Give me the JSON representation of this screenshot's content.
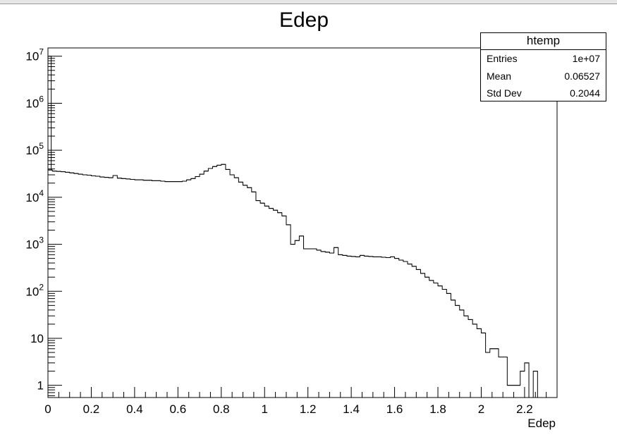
{
  "chart_data": {
    "type": "histogram",
    "title": "Edep",
    "xlabel": "Edep",
    "ylabel": "",
    "xlim": [
      0,
      2.35
    ],
    "ylim": [
      0.55,
      15000000
    ],
    "yscale": "log",
    "grid": false,
    "legend": "none",
    "line_color": "#000000",
    "bin_width": 0.02,
    "bins": [
      {
        "x0": 0.0,
        "y": 38000
      },
      {
        "x0": 0.02,
        "y": 36000
      },
      {
        "x0": 0.04,
        "y": 35500
      },
      {
        "x0": 0.06,
        "y": 35000
      },
      {
        "x0": 0.08,
        "y": 34000
      },
      {
        "x0": 0.1,
        "y": 33000
      },
      {
        "x0": 0.12,
        "y": 32000
      },
      {
        "x0": 0.14,
        "y": 31000
      },
      {
        "x0": 0.16,
        "y": 30000
      },
      {
        "x0": 0.18,
        "y": 29500
      },
      {
        "x0": 0.2,
        "y": 28500
      },
      {
        "x0": 0.22,
        "y": 28000
      },
      {
        "x0": 0.24,
        "y": 27000
      },
      {
        "x0": 0.26,
        "y": 26500
      },
      {
        "x0": 0.28,
        "y": 26000
      },
      {
        "x0": 0.3,
        "y": 29000
      },
      {
        "x0": 0.32,
        "y": 25500
      },
      {
        "x0": 0.34,
        "y": 25000
      },
      {
        "x0": 0.36,
        "y": 24500
      },
      {
        "x0": 0.38,
        "y": 24000
      },
      {
        "x0": 0.4,
        "y": 23500
      },
      {
        "x0": 0.42,
        "y": 23500
      },
      {
        "x0": 0.44,
        "y": 23000
      },
      {
        "x0": 0.46,
        "y": 23000
      },
      {
        "x0": 0.48,
        "y": 22500
      },
      {
        "x0": 0.5,
        "y": 22500
      },
      {
        "x0": 0.52,
        "y": 22000
      },
      {
        "x0": 0.54,
        "y": 21500
      },
      {
        "x0": 0.56,
        "y": 21500
      },
      {
        "x0": 0.58,
        "y": 21500
      },
      {
        "x0": 0.6,
        "y": 21500
      },
      {
        "x0": 0.62,
        "y": 22000
      },
      {
        "x0": 0.64,
        "y": 23500
      },
      {
        "x0": 0.66,
        "y": 25000
      },
      {
        "x0": 0.68,
        "y": 27500
      },
      {
        "x0": 0.7,
        "y": 31000
      },
      {
        "x0": 0.72,
        "y": 36000
      },
      {
        "x0": 0.74,
        "y": 41000
      },
      {
        "x0": 0.76,
        "y": 45000
      },
      {
        "x0": 0.78,
        "y": 48000
      },
      {
        "x0": 0.8,
        "y": 50000
      },
      {
        "x0": 0.82,
        "y": 39000
      },
      {
        "x0": 0.84,
        "y": 30000
      },
      {
        "x0": 0.86,
        "y": 26000
      },
      {
        "x0": 0.88,
        "y": 21000
      },
      {
        "x0": 0.9,
        "y": 18000
      },
      {
        "x0": 0.92,
        "y": 16000
      },
      {
        "x0": 0.94,
        "y": 13000
      },
      {
        "x0": 0.96,
        "y": 8500
      },
      {
        "x0": 0.98,
        "y": 7500
      },
      {
        "x0": 1.0,
        "y": 6500
      },
      {
        "x0": 1.02,
        "y": 5800
      },
      {
        "x0": 1.04,
        "y": 5300
      },
      {
        "x0": 1.06,
        "y": 4700
      },
      {
        "x0": 1.08,
        "y": 4000
      },
      {
        "x0": 1.1,
        "y": 2600
      },
      {
        "x0": 1.12,
        "y": 1000
      },
      {
        "x0": 1.14,
        "y": 1200
      },
      {
        "x0": 1.16,
        "y": 1500
      },
      {
        "x0": 1.18,
        "y": 800
      },
      {
        "x0": 1.2,
        "y": 800
      },
      {
        "x0": 1.22,
        "y": 800
      },
      {
        "x0": 1.24,
        "y": 750
      },
      {
        "x0": 1.26,
        "y": 700
      },
      {
        "x0": 1.28,
        "y": 680
      },
      {
        "x0": 1.3,
        "y": 650
      },
      {
        "x0": 1.32,
        "y": 850
      },
      {
        "x0": 1.34,
        "y": 600
      },
      {
        "x0": 1.36,
        "y": 580
      },
      {
        "x0": 1.38,
        "y": 560
      },
      {
        "x0": 1.4,
        "y": 550
      },
      {
        "x0": 1.42,
        "y": 540
      },
      {
        "x0": 1.44,
        "y": 580
      },
      {
        "x0": 1.46,
        "y": 560
      },
      {
        "x0": 1.48,
        "y": 550
      },
      {
        "x0": 1.5,
        "y": 540
      },
      {
        "x0": 1.52,
        "y": 540
      },
      {
        "x0": 1.54,
        "y": 530
      },
      {
        "x0": 1.56,
        "y": 520
      },
      {
        "x0": 1.58,
        "y": 540
      },
      {
        "x0": 1.6,
        "y": 500
      },
      {
        "x0": 1.62,
        "y": 460
      },
      {
        "x0": 1.64,
        "y": 430
      },
      {
        "x0": 1.66,
        "y": 380
      },
      {
        "x0": 1.68,
        "y": 340
      },
      {
        "x0": 1.7,
        "y": 290
      },
      {
        "x0": 1.72,
        "y": 240
      },
      {
        "x0": 1.74,
        "y": 200
      },
      {
        "x0": 1.76,
        "y": 170
      },
      {
        "x0": 1.78,
        "y": 150
      },
      {
        "x0": 1.8,
        "y": 130
      },
      {
        "x0": 1.82,
        "y": 110
      },
      {
        "x0": 1.84,
        "y": 90
      },
      {
        "x0": 1.86,
        "y": 65
      },
      {
        "x0": 1.88,
        "y": 50
      },
      {
        "x0": 1.9,
        "y": 40
      },
      {
        "x0": 1.92,
        "y": 30
      },
      {
        "x0": 1.94,
        "y": 25
      },
      {
        "x0": 1.96,
        "y": 20
      },
      {
        "x0": 1.98,
        "y": 16
      },
      {
        "x0": 2.0,
        "y": 13
      },
      {
        "x0": 2.02,
        "y": 5
      },
      {
        "x0": 2.04,
        "y": 6
      },
      {
        "x0": 2.06,
        "y": 6
      },
      {
        "x0": 2.08,
        "y": 4
      },
      {
        "x0": 2.1,
        "y": 4
      },
      {
        "x0": 2.12,
        "y": 1
      },
      {
        "x0": 2.14,
        "y": 1
      },
      {
        "x0": 2.16,
        "y": 1
      },
      {
        "x0": 2.18,
        "y": 2
      },
      {
        "x0": 2.2,
        "y": 3
      },
      {
        "x0": 2.22,
        "y": 0
      },
      {
        "x0": 2.24,
        "y": 2
      },
      {
        "x0": 2.26,
        "y": 0
      }
    ],
    "first_bin_spike": {
      "x0": 0.0,
      "x1": 0.015,
      "y": 10000000
    },
    "x_ticks": [
      {
        "v": 0,
        "label": "0"
      },
      {
        "v": 0.2,
        "label": "0.2"
      },
      {
        "v": 0.4,
        "label": "0.4"
      },
      {
        "v": 0.6,
        "label": "0.6"
      },
      {
        "v": 0.8,
        "label": "0.8"
      },
      {
        "v": 1,
        "label": "1"
      },
      {
        "v": 1.2,
        "label": "1.2"
      },
      {
        "v": 1.4,
        "label": "1.4"
      },
      {
        "v": 1.6,
        "label": "1.6"
      },
      {
        "v": 1.8,
        "label": "1.8"
      },
      {
        "v": 2,
        "label": "2"
      },
      {
        "v": 2.2,
        "label": "2.2"
      }
    ],
    "y_ticks": [
      {
        "v": 1,
        "base": "1",
        "exp": ""
      },
      {
        "v": 10,
        "base": "10",
        "exp": ""
      },
      {
        "v": 100,
        "base": "10",
        "exp": "2"
      },
      {
        "v": 1000,
        "base": "10",
        "exp": "3"
      },
      {
        "v": 10000,
        "base": "10",
        "exp": "4"
      },
      {
        "v": 100000,
        "base": "10",
        "exp": "5"
      },
      {
        "v": 1000000,
        "base": "10",
        "exp": "6"
      },
      {
        "v": 10000000,
        "base": "10",
        "exp": "7"
      }
    ]
  },
  "stats": {
    "title": "htemp",
    "rows": [
      {
        "label": "Entries",
        "value": "1e+07"
      },
      {
        "label": "Mean",
        "value": "0.06527"
      },
      {
        "label": "Std Dev",
        "value": "0.2044"
      }
    ]
  }
}
